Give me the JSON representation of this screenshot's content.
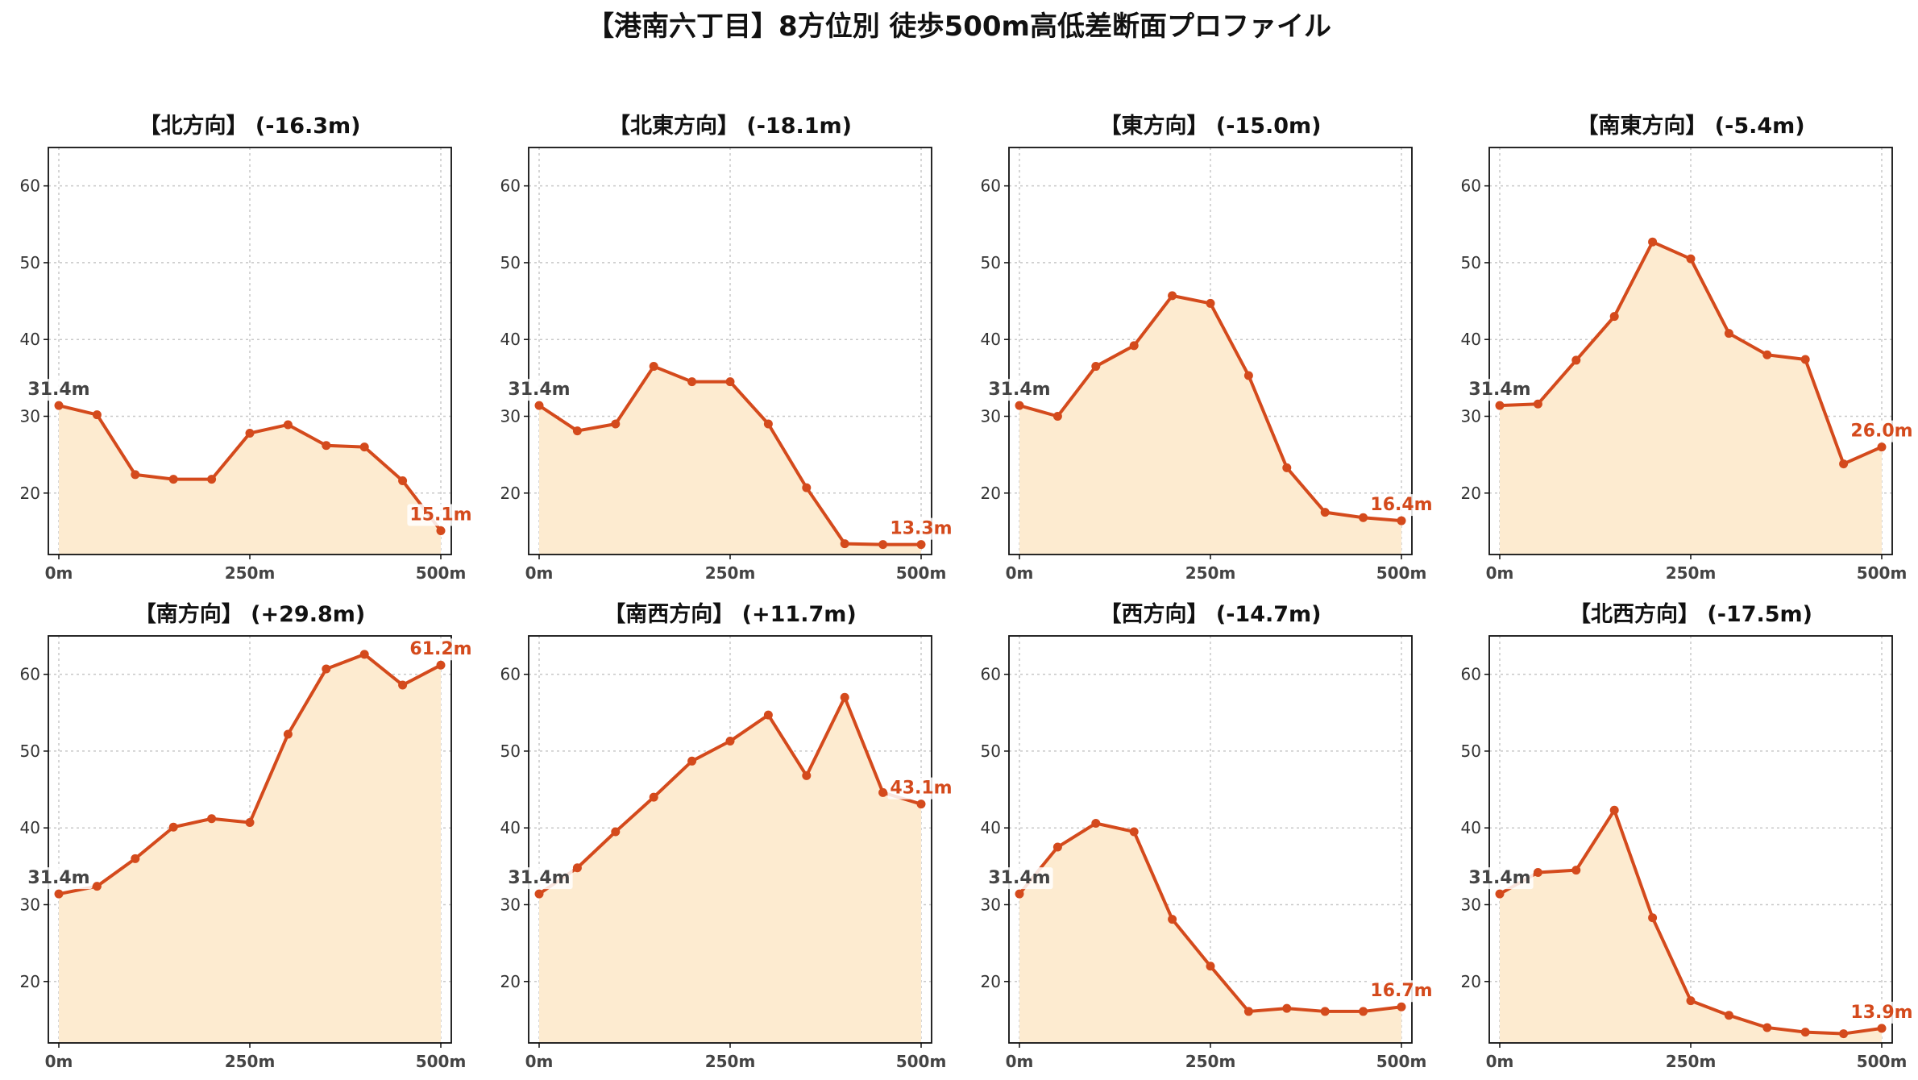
{
  "page": {
    "suptitle": "【港南六丁目】8方位別 徒歩500m高低差断面プロファイル"
  },
  "style": {
    "line_color": "#d44a1c",
    "fill_color": "#fdebd0",
    "start_label_color": "#444444"
  },
  "chart_data": [
    {
      "type": "area",
      "title": "【北方向】 (-16.3m)",
      "x": [
        0,
        50,
        100,
        150,
        200,
        250,
        300,
        350,
        400,
        450,
        500
      ],
      "values": [
        31.4,
        30.2,
        22.4,
        21.8,
        21.8,
        27.8,
        28.9,
        26.2,
        26.0,
        21.6,
        15.1
      ],
      "start_label": "31.4m",
      "end_label": "15.1m",
      "ylim": [
        12,
        65
      ],
      "yticks": [
        20,
        30,
        40,
        50,
        60
      ],
      "xticks": [
        {
          "value": 0,
          "label": "0m"
        },
        {
          "value": 250,
          "label": "250m"
        },
        {
          "value": 500,
          "label": "500m"
        }
      ],
      "grid": true
    },
    {
      "type": "area",
      "title": "【北東方向】 (-18.1m)",
      "x": [
        0,
        50,
        100,
        150,
        200,
        250,
        300,
        350,
        400,
        450,
        500
      ],
      "values": [
        31.4,
        28.1,
        29.0,
        36.5,
        34.5,
        34.5,
        29.0,
        20.7,
        13.4,
        13.3,
        13.3
      ],
      "start_label": "31.4m",
      "end_label": "13.3m",
      "ylim": [
        12,
        65
      ],
      "yticks": [
        20,
        30,
        40,
        50,
        60
      ],
      "xticks": [
        {
          "value": 0,
          "label": "0m"
        },
        {
          "value": 250,
          "label": "250m"
        },
        {
          "value": 500,
          "label": "500m"
        }
      ],
      "grid": true
    },
    {
      "type": "area",
      "title": "【東方向】 (-15.0m)",
      "x": [
        0,
        50,
        100,
        150,
        200,
        250,
        300,
        350,
        400,
        450,
        500
      ],
      "values": [
        31.4,
        30.0,
        36.5,
        39.2,
        45.7,
        44.7,
        35.3,
        23.3,
        17.5,
        16.8,
        16.4
      ],
      "start_label": "31.4m",
      "end_label": "16.4m",
      "ylim": [
        12,
        65
      ],
      "yticks": [
        20,
        30,
        40,
        50,
        60
      ],
      "xticks": [
        {
          "value": 0,
          "label": "0m"
        },
        {
          "value": 250,
          "label": "250m"
        },
        {
          "value": 500,
          "label": "500m"
        }
      ],
      "grid": true
    },
    {
      "type": "area",
      "title": "【南東方向】 (-5.4m)",
      "x": [
        0,
        50,
        100,
        150,
        200,
        250,
        300,
        350,
        400,
        450,
        500
      ],
      "values": [
        31.4,
        31.6,
        37.3,
        43.0,
        52.7,
        50.5,
        40.8,
        38.0,
        37.4,
        23.8,
        26.0
      ],
      "start_label": "31.4m",
      "end_label": "26.0m",
      "ylim": [
        12,
        65
      ],
      "yticks": [
        20,
        30,
        40,
        50,
        60
      ],
      "xticks": [
        {
          "value": 0,
          "label": "0m"
        },
        {
          "value": 250,
          "label": "250m"
        },
        {
          "value": 500,
          "label": "500m"
        }
      ],
      "grid": true
    },
    {
      "type": "area",
      "title": "【南方向】 (+29.8m)",
      "x": [
        0,
        50,
        100,
        150,
        200,
        250,
        300,
        350,
        400,
        450,
        500
      ],
      "values": [
        31.4,
        32.4,
        36.0,
        40.1,
        41.2,
        40.7,
        52.2,
        60.7,
        62.6,
        58.6,
        61.2
      ],
      "start_label": "31.4m",
      "end_label": "61.2m",
      "ylim": [
        12,
        65
      ],
      "yticks": [
        20,
        30,
        40,
        50,
        60
      ],
      "xticks": [
        {
          "value": 0,
          "label": "0m"
        },
        {
          "value": 250,
          "label": "250m"
        },
        {
          "value": 500,
          "label": "500m"
        }
      ],
      "grid": true
    },
    {
      "type": "area",
      "title": "【南西方向】 (+11.7m)",
      "x": [
        0,
        50,
        100,
        150,
        200,
        250,
        300,
        350,
        400,
        450,
        500
      ],
      "values": [
        31.4,
        34.8,
        39.5,
        44.0,
        48.7,
        51.3,
        54.7,
        46.8,
        57.0,
        44.6,
        43.1
      ],
      "start_label": "31.4m",
      "end_label": "43.1m",
      "ylim": [
        12,
        65
      ],
      "yticks": [
        20,
        30,
        40,
        50,
        60
      ],
      "xticks": [
        {
          "value": 0,
          "label": "0m"
        },
        {
          "value": 250,
          "label": "250m"
        },
        {
          "value": 500,
          "label": "500m"
        }
      ],
      "grid": true
    },
    {
      "type": "area",
      "title": "【西方向】 (-14.7m)",
      "x": [
        0,
        50,
        100,
        150,
        200,
        250,
        300,
        350,
        400,
        450,
        500
      ],
      "values": [
        31.4,
        37.5,
        40.6,
        39.5,
        28.1,
        22.0,
        16.1,
        16.5,
        16.1,
        16.1,
        16.7
      ],
      "start_label": "31.4m",
      "end_label": "16.7m",
      "ylim": [
        12,
        65
      ],
      "yticks": [
        20,
        30,
        40,
        50,
        60
      ],
      "xticks": [
        {
          "value": 0,
          "label": "0m"
        },
        {
          "value": 250,
          "label": "250m"
        },
        {
          "value": 500,
          "label": "500m"
        }
      ],
      "grid": true
    },
    {
      "type": "area",
      "title": "【北西方向】 (-17.5m)",
      "x": [
        0,
        50,
        100,
        150,
        200,
        250,
        300,
        350,
        400,
        450,
        500
      ],
      "values": [
        31.4,
        34.2,
        34.5,
        42.3,
        28.3,
        17.5,
        15.6,
        14.0,
        13.4,
        13.2,
        13.9
      ],
      "start_label": "31.4m",
      "end_label": "13.9m",
      "ylim": [
        12,
        65
      ],
      "yticks": [
        20,
        30,
        40,
        50,
        60
      ],
      "xticks": [
        {
          "value": 0,
          "label": "0m"
        },
        {
          "value": 250,
          "label": "250m"
        },
        {
          "value": 500,
          "label": "500m"
        }
      ],
      "grid": true
    }
  ]
}
